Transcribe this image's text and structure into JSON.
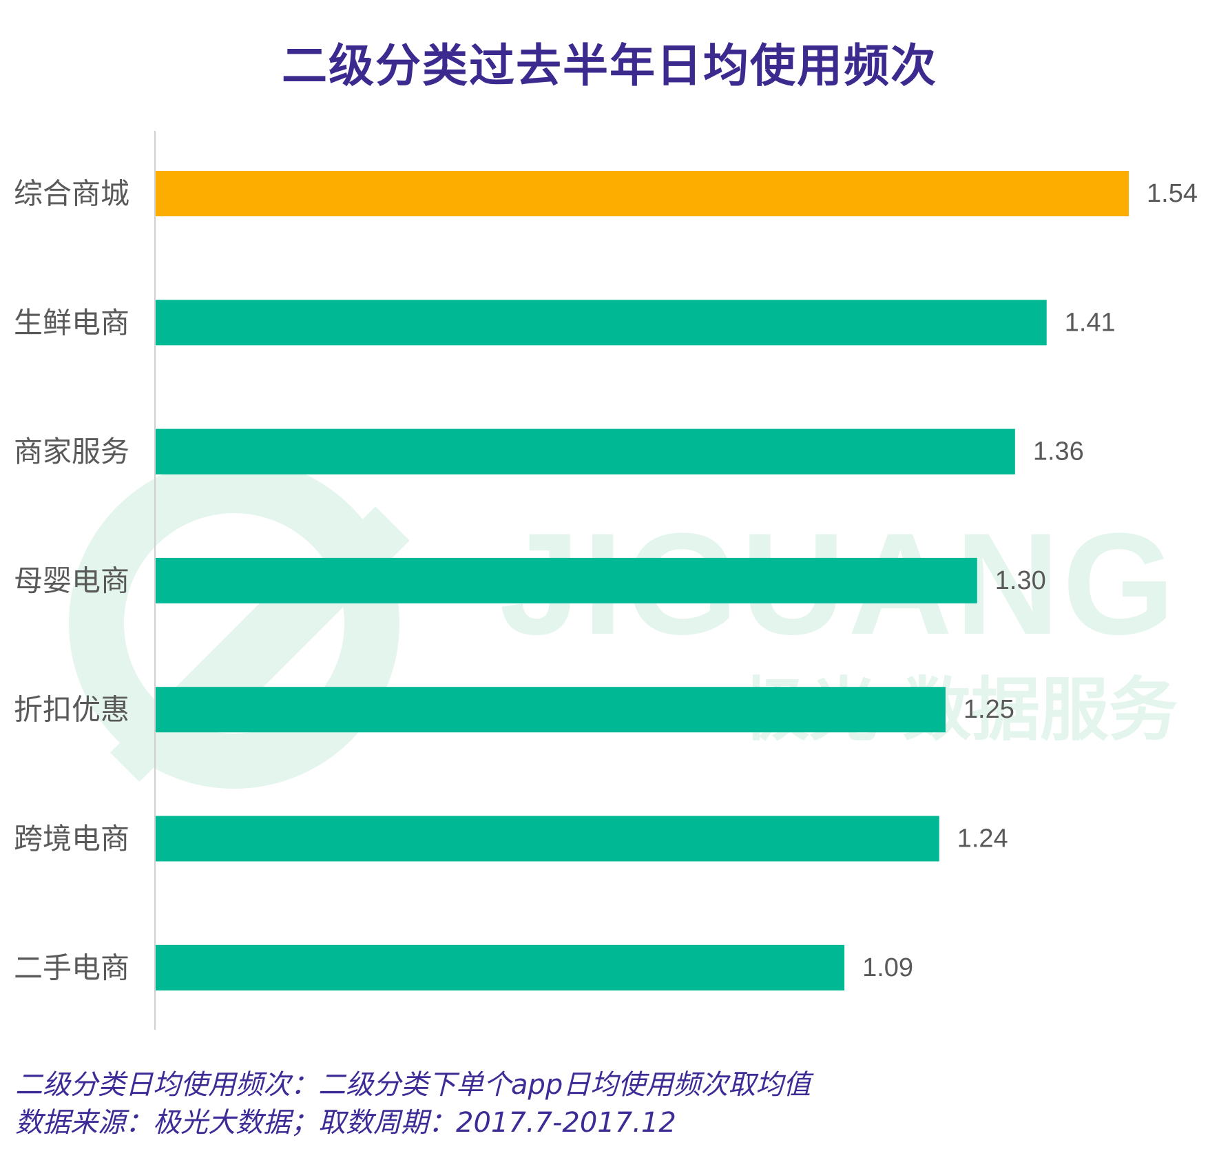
{
  "chart_data": {
    "type": "bar",
    "orientation": "horizontal",
    "title": "二级分类过去半年日均使用频次",
    "categories": [
      "综合商城",
      "生鲜电商",
      "商家服务",
      "母婴电商",
      "折扣优惠",
      "跨境电商",
      "二手电商"
    ],
    "values": [
      1.54,
      1.41,
      1.36,
      1.3,
      1.25,
      1.24,
      1.09
    ],
    "value_labels": [
      "1.54",
      "1.41",
      "1.36",
      "1.30",
      "1.25",
      "1.24",
      "1.09"
    ],
    "highlight_index": 0,
    "xlim": [
      0,
      1.54
    ],
    "grid": false,
    "legend": "none",
    "colors": {
      "highlight": "#fdac00",
      "bar": "#00b894",
      "axis": "#d0d0d0",
      "category_text": "#595959",
      "value_text": "#595959"
    }
  },
  "watermark": {
    "brand": "JIGUANG",
    "subtitle": "极光 数据服务",
    "color": "#e3f5ec"
  },
  "footnotes": [
    "二级分类日均使用频次：二级分类下单个app日均使用频次取均值",
    "数据来源：极光大数据；取数周期：2017.7-2017.12"
  ]
}
